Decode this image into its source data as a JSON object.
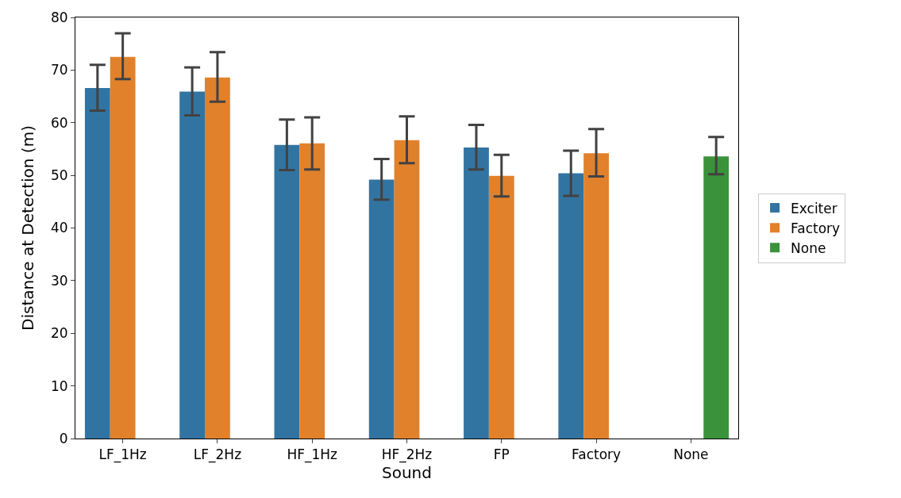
{
  "chart_data": {
    "type": "bar",
    "xlabel": "Sound",
    "ylabel": "Distance at Detection (m)",
    "categories": [
      "LF_1Hz",
      "LF_2Hz",
      "HF_1Hz",
      "HF_2Hz",
      "FP",
      "Factory",
      "None"
    ],
    "series": [
      {
        "name": "Exciter",
        "color": "#3274a1",
        "values": [
          66.6,
          65.9,
          55.8,
          49.2,
          55.3,
          50.4,
          null
        ],
        "errors": [
          [
            62.3,
            71
          ],
          [
            61.4,
            70.5
          ],
          [
            51,
            60.6
          ],
          [
            45.4,
            53.1
          ],
          [
            51.1,
            59.6
          ],
          [
            46.1,
            54.7
          ],
          null
        ]
      },
      {
        "name": "Factory",
        "color": "#e1812c",
        "values": [
          72.5,
          68.6,
          56.1,
          56.7,
          49.9,
          54.2,
          null
        ],
        "errors": [
          [
            68.3,
            77
          ],
          [
            64,
            73.4
          ],
          [
            51.1,
            61
          ],
          [
            52.3,
            61.2
          ],
          [
            46,
            53.9
          ],
          [
            49.8,
            58.8
          ],
          null
        ]
      },
      {
        "name": "None",
        "color": "#3a923a",
        "values": [
          null,
          null,
          null,
          null,
          null,
          null,
          53.6
        ],
        "errors": [
          null,
          null,
          null,
          null,
          null,
          null,
          [
            50.2,
            57.3
          ]
        ]
      }
    ],
    "ylim": [
      0,
      80
    ],
    "yticks": [
      0,
      10,
      20,
      30,
      40,
      50,
      60,
      70,
      80
    ],
    "legend": "right"
  }
}
